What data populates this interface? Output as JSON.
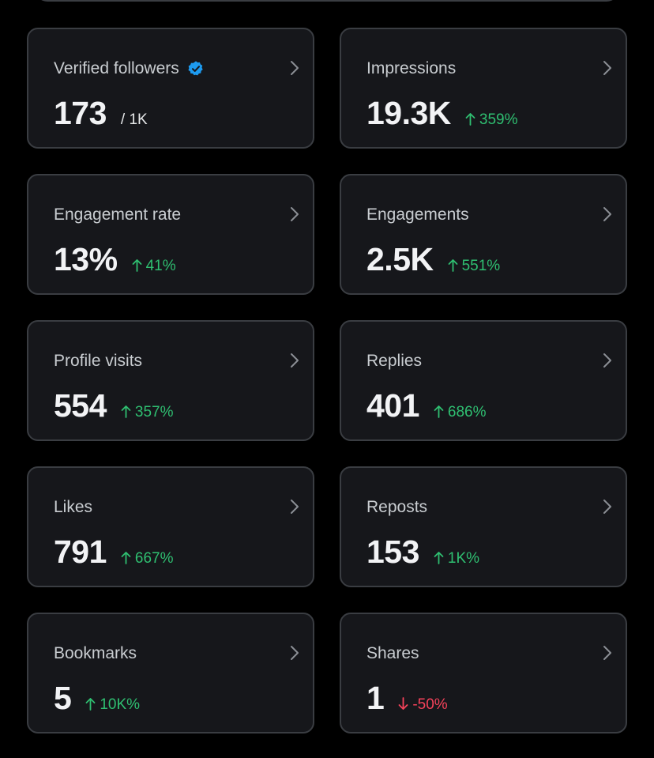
{
  "colors": {
    "background": "#000000",
    "card": "#16171b",
    "border": "#3a3d42",
    "positive": "#2fbf71",
    "negative": "#f4425a",
    "verified": "#1d9bf0"
  },
  "metrics": [
    {
      "label": "Verified followers",
      "value": "173",
      "sub": "/ 1K",
      "delta": null,
      "verified": true
    },
    {
      "label": "Impressions",
      "value": "19.3K",
      "delta": "359%",
      "direction": "up"
    },
    {
      "label": "Engagement rate",
      "value": "13%",
      "delta": "41%",
      "direction": "up"
    },
    {
      "label": "Engagements",
      "value": "2.5K",
      "delta": "551%",
      "direction": "up"
    },
    {
      "label": "Profile visits",
      "value": "554",
      "delta": "357%",
      "direction": "up"
    },
    {
      "label": "Replies",
      "value": "401",
      "delta": "686%",
      "direction": "up"
    },
    {
      "label": "Likes",
      "value": "791",
      "delta": "667%",
      "direction": "up"
    },
    {
      "label": "Reposts",
      "value": "153",
      "delta": "1K%",
      "direction": "up"
    },
    {
      "label": "Bookmarks",
      "value": "5",
      "delta": "10K%",
      "direction": "up"
    },
    {
      "label": "Shares",
      "value": "1",
      "delta": "-50%",
      "direction": "down"
    }
  ]
}
